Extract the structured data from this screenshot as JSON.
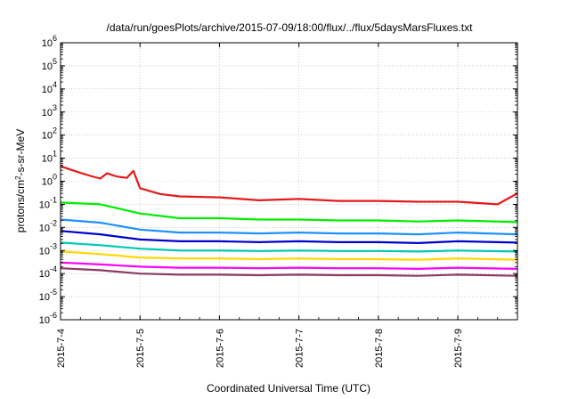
{
  "chart_data": {
    "type": "line",
    "title": "/data/run/goesPlots/archive/2015-07-09/18:00/flux/../flux/5daysMarsFluxes.txt",
    "xlabel": "Coordinated Universal Time (UTC)",
    "ylabel": {
      "pre": "protons/cm",
      "sup": "2",
      "post": "-s-sr-MeV"
    },
    "yscale": "log",
    "ylim": [
      1e-06,
      1000000.0
    ],
    "y_ticks": [
      {
        "base": "10",
        "exp": "-6",
        "value": 1e-06
      },
      {
        "base": "10",
        "exp": "-5",
        "value": 1e-05
      },
      {
        "base": "10",
        "exp": "-4",
        "value": 0.0001
      },
      {
        "base": "10",
        "exp": "-3",
        "value": 0.001
      },
      {
        "base": "10",
        "exp": "-2",
        "value": 0.01
      },
      {
        "base": "10",
        "exp": "-1",
        "value": 0.1
      },
      {
        "base": "10",
        "exp": "0",
        "value": 1
      },
      {
        "base": "10",
        "exp": "1",
        "value": 10
      },
      {
        "base": "10",
        "exp": "2",
        "value": 100
      },
      {
        "base": "10",
        "exp": "3",
        "value": 1000
      },
      {
        "base": "10",
        "exp": "4",
        "value": 10000
      },
      {
        "base": "10",
        "exp": "5",
        "value": 100000
      },
      {
        "base": "10",
        "exp": "6",
        "value": 1000000
      }
    ],
    "x_range": [
      "2015-07-04T00:00",
      "2015-07-09T18:00"
    ],
    "x_ticks": [
      "2015-7-4",
      "2015-7-5",
      "2015-7-6",
      "2015-7-7",
      "2015-7-8",
      "2015-7-9"
    ],
    "grid": true,
    "legend": "none",
    "series": [
      {
        "color": "#e41a1c",
        "points": [
          [
            "2015-07-04T00:00",
            4.5
          ],
          [
            "2015-07-04T03:00",
            3.2
          ],
          [
            "2015-07-04T06:00",
            2.3
          ],
          [
            "2015-07-04T09:00",
            1.7
          ],
          [
            "2015-07-04T12:00",
            1.3
          ],
          [
            "2015-07-04T14:00",
            2.2
          ],
          [
            "2015-07-04T17:00",
            1.6
          ],
          [
            "2015-07-04T20:00",
            1.4
          ],
          [
            "2015-07-04T22:00",
            2.8
          ],
          [
            "2015-07-05T00:00",
            0.5
          ],
          [
            "2015-07-05T06:00",
            0.28
          ],
          [
            "2015-07-05T12:00",
            0.22
          ],
          [
            "2015-07-06T00:00",
            0.2
          ],
          [
            "2015-07-06T12:00",
            0.15
          ],
          [
            "2015-07-07T00:00",
            0.17
          ],
          [
            "2015-07-07T12:00",
            0.14
          ],
          [
            "2015-07-08T00:00",
            0.14
          ],
          [
            "2015-07-08T12:00",
            0.13
          ],
          [
            "2015-07-09T00:00",
            0.13
          ],
          [
            "2015-07-09T12:00",
            0.1
          ],
          [
            "2015-07-09T18:00",
            0.3
          ]
        ]
      },
      {
        "color": "#00ee00",
        "points": [
          [
            "2015-07-04T00:00",
            0.12
          ],
          [
            "2015-07-04T12:00",
            0.1
          ],
          [
            "2015-07-05T00:00",
            0.04
          ],
          [
            "2015-07-05T12:00",
            0.025
          ],
          [
            "2015-07-06T00:00",
            0.025
          ],
          [
            "2015-07-06T12:00",
            0.022
          ],
          [
            "2015-07-07T00:00",
            0.022
          ],
          [
            "2015-07-07T12:00",
            0.02
          ],
          [
            "2015-07-08T00:00",
            0.02
          ],
          [
            "2015-07-08T12:00",
            0.018
          ],
          [
            "2015-07-09T00:00",
            0.02
          ],
          [
            "2015-07-09T18:00",
            0.017
          ]
        ]
      },
      {
        "color": "#1e90ff",
        "points": [
          [
            "2015-07-04T00:00",
            0.022
          ],
          [
            "2015-07-04T12:00",
            0.016
          ],
          [
            "2015-07-05T00:00",
            0.008
          ],
          [
            "2015-07-05T12:00",
            0.006
          ],
          [
            "2015-07-06T00:00",
            0.006
          ],
          [
            "2015-07-06T12:00",
            0.0055
          ],
          [
            "2015-07-07T00:00",
            0.006
          ],
          [
            "2015-07-07T12:00",
            0.0055
          ],
          [
            "2015-07-08T00:00",
            0.0055
          ],
          [
            "2015-07-08T12:00",
            0.005
          ],
          [
            "2015-07-09T00:00",
            0.006
          ],
          [
            "2015-07-09T18:00",
            0.005
          ]
        ]
      },
      {
        "color": "#0000cd",
        "points": [
          [
            "2015-07-04T00:00",
            0.007
          ],
          [
            "2015-07-04T12:00",
            0.005
          ],
          [
            "2015-07-05T00:00",
            0.003
          ],
          [
            "2015-07-05T12:00",
            0.0025
          ],
          [
            "2015-07-06T00:00",
            0.0025
          ],
          [
            "2015-07-06T12:00",
            0.0023
          ],
          [
            "2015-07-07T00:00",
            0.0025
          ],
          [
            "2015-07-07T12:00",
            0.0023
          ],
          [
            "2015-07-08T00:00",
            0.0023
          ],
          [
            "2015-07-08T12:00",
            0.0021
          ],
          [
            "2015-07-09T00:00",
            0.0025
          ],
          [
            "2015-07-09T18:00",
            0.0022
          ]
        ]
      },
      {
        "color": "#00c8b4",
        "points": [
          [
            "2015-07-04T00:00",
            0.0022
          ],
          [
            "2015-07-04T12:00",
            0.0017
          ],
          [
            "2015-07-05T00:00",
            0.0012
          ],
          [
            "2015-07-05T12:00",
            0.001
          ],
          [
            "2015-07-06T00:00",
            0.001
          ],
          [
            "2015-07-06T12:00",
            0.00095
          ],
          [
            "2015-07-07T00:00",
            0.001
          ],
          [
            "2015-07-07T12:00",
            0.00095
          ],
          [
            "2015-07-08T00:00",
            0.00095
          ],
          [
            "2015-07-08T12:00",
            0.0009
          ],
          [
            "2015-07-09T00:00",
            0.001
          ],
          [
            "2015-07-09T18:00",
            0.0009
          ]
        ]
      },
      {
        "color": "#ffd700",
        "points": [
          [
            "2015-07-04T00:00",
            0.0009
          ],
          [
            "2015-07-04T12:00",
            0.0007
          ],
          [
            "2015-07-05T00:00",
            0.0005
          ],
          [
            "2015-07-05T12:00",
            0.00045
          ],
          [
            "2015-07-06T00:00",
            0.00045
          ],
          [
            "2015-07-06T12:00",
            0.00042
          ],
          [
            "2015-07-07T00:00",
            0.00045
          ],
          [
            "2015-07-07T12:00",
            0.00042
          ],
          [
            "2015-07-08T00:00",
            0.00042
          ],
          [
            "2015-07-08T12:00",
            0.0004
          ],
          [
            "2015-07-09T00:00",
            0.00045
          ],
          [
            "2015-07-09T18:00",
            0.0004
          ]
        ]
      },
      {
        "color": "#ff00ff",
        "points": [
          [
            "2015-07-04T00:00",
            0.0003
          ],
          [
            "2015-07-04T12:00",
            0.00025
          ],
          [
            "2015-07-05T00:00",
            0.0002
          ],
          [
            "2015-07-05T12:00",
            0.00018
          ],
          [
            "2015-07-06T00:00",
            0.00018
          ],
          [
            "2015-07-06T12:00",
            0.00017
          ],
          [
            "2015-07-07T00:00",
            0.00018
          ],
          [
            "2015-07-07T12:00",
            0.00017
          ],
          [
            "2015-07-08T00:00",
            0.00017
          ],
          [
            "2015-07-08T12:00",
            0.00016
          ],
          [
            "2015-07-09T00:00",
            0.00018
          ],
          [
            "2015-07-09T18:00",
            0.00016
          ]
        ]
      },
      {
        "color": "#8b3a62",
        "points": [
          [
            "2015-07-04T00:00",
            0.00017
          ],
          [
            "2015-07-04T12:00",
            0.00014
          ],
          [
            "2015-07-05T00:00",
            0.0001
          ],
          [
            "2015-07-05T12:00",
            9e-05
          ],
          [
            "2015-07-06T00:00",
            9e-05
          ],
          [
            "2015-07-06T12:00",
            8.5e-05
          ],
          [
            "2015-07-07T00:00",
            9e-05
          ],
          [
            "2015-07-07T12:00",
            8.5e-05
          ],
          [
            "2015-07-08T00:00",
            8.5e-05
          ],
          [
            "2015-07-08T12:00",
            8e-05
          ],
          [
            "2015-07-09T00:00",
            9e-05
          ],
          [
            "2015-07-09T18:00",
            8e-05
          ]
        ]
      }
    ]
  }
}
